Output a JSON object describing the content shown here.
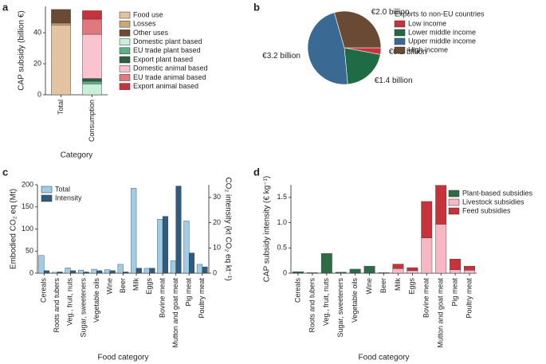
{
  "chart_data": [
    {
      "type": "bar",
      "panel": "a",
      "stacked": true,
      "ylabel": "CAP subsidy (billion €)",
      "xlabel": "Category",
      "categories": [
        "Total",
        "Consumption"
      ],
      "ylim": [
        0,
        57
      ],
      "yticks": [
        0,
        20,
        40
      ],
      "legend": "right",
      "series": [
        {
          "name": "Food use",
          "color": "#e3c3a0",
          "values": [
            45,
            0
          ]
        },
        {
          "name": "Losses",
          "color": "#c8a878",
          "values": [
            1.2,
            0
          ]
        },
        {
          "name": "Other uses",
          "color": "#6b4a35",
          "values": [
            8.8,
            0
          ]
        },
        {
          "name": "Domestic plant based",
          "color": "#c8f0d8",
          "values": [
            0,
            7
          ]
        },
        {
          "name": "EU trade plant based",
          "color": "#5fb08a",
          "values": [
            0,
            1.7
          ]
        },
        {
          "name": "Export plant based",
          "color": "#2f5e43",
          "values": [
            0,
            1.8
          ]
        },
        {
          "name": "Domestic animal based",
          "color": "#f9c4d0",
          "values": [
            0,
            28.5
          ]
        },
        {
          "name": "EU trade animal based",
          "color": "#e07880",
          "values": [
            0,
            9.8
          ]
        },
        {
          "name": "Export animal based",
          "color": "#c8323a",
          "values": [
            0,
            5.4
          ]
        }
      ]
    },
    {
      "type": "pie",
      "panel": "b",
      "legend_title": "Exports to non-EU countries",
      "legend": "right",
      "categories": [
        "Low income",
        "Lower middle income",
        "Upper middle income",
        "High income"
      ],
      "values": [
        0.2,
        1.4,
        3.2,
        2.0
      ],
      "value_labels": [
        "€0.2 billion",
        "€1.4 billion",
        "€3.2 billion",
        "€2.0 billion"
      ],
      "colors": [
        "#c8323a",
        "#1e6b45",
        "#3a6a94",
        "#6b4a35"
      ]
    },
    {
      "type": "bar",
      "panel": "c",
      "stacked": false,
      "ylabel": "Embodied CO₂ eq (Mt)",
      "y2label": "CO₂ intensity (kt CO₂ eq kt⁻¹)",
      "xlabel": "Food category",
      "categories": [
        "Cereals",
        "Roots and tubers",
        "Veg., fruit, nuts",
        "Sugar, sweeteners",
        "Vegetable oils",
        "Wine",
        "Beer",
        "Milk",
        "Eggs",
        "Bovine meat",
        "Mutton and goat meat",
        "Pig meat",
        "Poultry meat"
      ],
      "ylim": [
        0,
        200
      ],
      "yticks": [
        0,
        50,
        100,
        150,
        200
      ],
      "y2lim": [
        0,
        35
      ],
      "y2ticks": [
        0,
        10,
        20,
        30
      ],
      "legend": "upper left",
      "series": [
        {
          "name": "Total",
          "color": "#9fcde8",
          "values": [
            40,
            2,
            12,
            7,
            9,
            8,
            20,
            192,
            11,
            122,
            28,
            118,
            20
          ]
        },
        {
          "name": "Intensity",
          "color": "#2f5b80",
          "axis": "y2",
          "values": [
            1,
            0.5,
            1,
            0.5,
            1,
            1,
            0.5,
            2,
            2,
            22.5,
            34.5,
            8,
            2.5
          ]
        }
      ]
    },
    {
      "type": "bar",
      "panel": "d",
      "stacked": true,
      "ylabel": "CAP subsidy intensity (€ kg⁻¹)",
      "xlabel": "Food category",
      "categories": [
        "Cereals",
        "Roots and tubers",
        "Veg., fruit, nuts",
        "Sugar, sweeteners",
        "Vegetable oils",
        "Wine",
        "Beer",
        "Milk",
        "Eggs",
        "Bovine meat",
        "Mutton and goat meat",
        "Pig meat",
        "Poultry meat"
      ],
      "ylim": [
        0,
        1.75
      ],
      "yticks": [
        0,
        0.5,
        {
          "value": 1,
          "label": "1.0"
        },
        1.5
      ],
      "legend": "upper right",
      "series": [
        {
          "name": "Plant-based subsidies",
          "color": "#2f6b45",
          "values": [
            0.03,
            0.01,
            0.39,
            0.02,
            0.08,
            0.14,
            0.01,
            0,
            0,
            0,
            0,
            0,
            0
          ]
        },
        {
          "name": "Livestock subsidies",
          "color": "#f7b8c4",
          "values": [
            0,
            0,
            0,
            0,
            0,
            0,
            0,
            0.09,
            0.05,
            0.7,
            0.97,
            0.07,
            0.06
          ]
        },
        {
          "name": "Feed subsidies",
          "color": "#c8323a",
          "values": [
            0,
            0,
            0,
            0,
            0,
            0,
            0,
            0.09,
            0.06,
            0.72,
            0.77,
            0.21,
            0.08
          ]
        }
      ]
    }
  ]
}
